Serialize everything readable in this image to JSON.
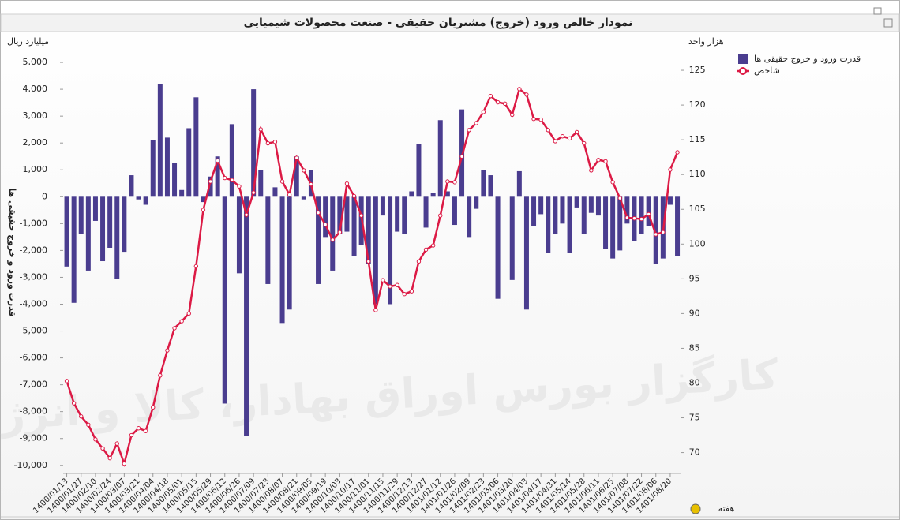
{
  "chart_data": {
    "type": "bar",
    "title": "نمودار خالص ورود (خروج) مشتریان حقیقی - صنعت محصولات شیمیایی",
    "y_unit": "میلیارد ریال",
    "y2_unit": "هزار واحد",
    "y_label": "قدرت ورود و خروج حقیقی ها",
    "x_label": "هفته",
    "watermark": "کارگزار بورس اوراق بهادار، کالا و انرژی",
    "categories": [
      "1400/01/13",
      null,
      "1400/01/27",
      null,
      "1400/02/10",
      null,
      "1400/02/24",
      null,
      "1400/03/07",
      null,
      "1400/03/21",
      null,
      "1400/04/04",
      null,
      "1400/04/18",
      null,
      "1400/05/01",
      null,
      "1400/05/15",
      null,
      "1400/05/29",
      null,
      "1400/06/12",
      null,
      "1400/06/26",
      null,
      "1400/07/09",
      null,
      "1400/07/23",
      null,
      "1400/08/07",
      null,
      "1400/08/21",
      null,
      "1400/09/05",
      null,
      "1400/09/19",
      null,
      "1400/10/03",
      null,
      "1400/10/17",
      null,
      "1400/11/01",
      null,
      "1400/11/15",
      null,
      "1400/11/29",
      null,
      "1400/12/13",
      null,
      "1400/12/27",
      null,
      "1401/01/12",
      null,
      "1401/01/26",
      null,
      "1401/02/09",
      null,
      "1401/02/23",
      null,
      "1401/03/06",
      null,
      "1401/03/20",
      null,
      "1401/04/03",
      null,
      "1401/04/17",
      null,
      "1401/04/31",
      null,
      "1401/05/14",
      null,
      "1401/05/28",
      null,
      "1401/06/11",
      null,
      "1401/06/25",
      null,
      "1401/07/08",
      null,
      "1401/07/22",
      null,
      "1401/08/06",
      null,
      "1401/08/20",
      null
    ],
    "series": [
      {
        "name": "قدرت ورود و خروج حقیقی ها",
        "type": "bar",
        "color": "#4a3d8f",
        "values": [
          -2600,
          -3950,
          -1400,
          -2750,
          -900,
          -2400,
          -1900,
          -3050,
          -2050,
          800,
          -100,
          -300,
          2100,
          4200,
          2200,
          1250,
          250,
          2550,
          3700,
          -200,
          750,
          1500,
          -7700,
          2700,
          -2850,
          -8900,
          4000,
          1000,
          -3250,
          350,
          -4700,
          -4200,
          1500,
          -100,
          1000,
          -3250,
          -1500,
          -2750,
          -1400,
          -1300,
          -2200,
          -1800,
          -2500,
          -4000,
          -700,
          -4000,
          -1300,
          -1400,
          200,
          1950,
          -1150,
          150,
          2850,
          200,
          -1050,
          3250,
          -1500,
          -450,
          1000,
          800,
          -3800,
          0,
          -3100,
          950,
          -4200,
          -1100,
          -650,
          -2100,
          -1400,
          -1000,
          -2100,
          -400,
          -1400,
          -600,
          -700,
          -1950,
          -2300,
          -2000,
          -1000,
          -1650,
          -1400,
          -1100,
          -2500,
          -2300,
          -300,
          -2200
        ]
      },
      {
        "name": "شاخص",
        "type": "line",
        "axis": "y2",
        "color": "#dc1a45",
        "values": [
          80.3,
          77.1,
          75.2,
          74,
          71.9,
          70.6,
          69.2,
          71.3,
          68.4,
          72.5,
          73.5,
          73.1,
          76.5,
          81.1,
          84.7,
          87.9,
          88.9,
          90,
          96.8,
          104.9,
          109,
          112,
          109.5,
          109.2,
          108.3,
          104.2,
          107.4,
          116.5,
          114.5,
          114.7,
          109,
          107.1,
          112.4,
          110.6,
          108.6,
          104.5,
          102.8,
          100.6,
          101.7,
          108.7,
          106.9,
          104.1,
          97.5,
          90.5,
          94.8,
          93.9,
          94.1,
          92.8,
          93.2,
          97.5,
          99.2,
          99.8,
          104.1,
          109,
          108.9,
          112.6,
          116.4,
          117.4,
          119,
          121.3,
          120.4,
          120.2,
          118.6,
          122.3,
          121.5,
          118,
          117.9,
          116.4,
          114.8,
          115.5,
          115.2,
          116.1,
          114.5,
          110.6,
          112.1,
          111.9,
          108.9,
          106.6,
          103.8,
          103.7,
          103.6,
          104.3,
          101.4,
          101.7,
          110.7,
          113.2
        ]
      }
    ],
    "ylim": [
      -10300,
      6000
    ],
    "yticks": [
      {
        "value": 5000,
        "label": "5,000"
      },
      {
        "value": 4000,
        "label": "4,000"
      },
      {
        "value": 3000,
        "label": "3,000"
      },
      {
        "value": 2000,
        "label": "2,000"
      },
      {
        "value": 1000,
        "label": "1,000"
      },
      0,
      {
        "value": -1000,
        "label": "-1,000"
      },
      {
        "value": -2000,
        "label": "-2,000"
      },
      {
        "value": -3000,
        "label": "-3,000"
      },
      {
        "value": -4000,
        "label": "-4,000"
      },
      {
        "value": -5000,
        "label": "-5,000"
      },
      {
        "value": -6000,
        "label": "-6,000"
      },
      {
        "value": -7000,
        "label": "-7,000"
      },
      {
        "value": -8000,
        "label": "-8,000"
      },
      {
        "value": -9000,
        "label": "-9,000"
      },
      {
        "value": -10000,
        "label": "-10,000"
      }
    ],
    "y2lim": [
      67,
      130
    ],
    "y2ticks": [
      70,
      75,
      80,
      85,
      90,
      95,
      100,
      105,
      110,
      115,
      120,
      125
    ]
  }
}
